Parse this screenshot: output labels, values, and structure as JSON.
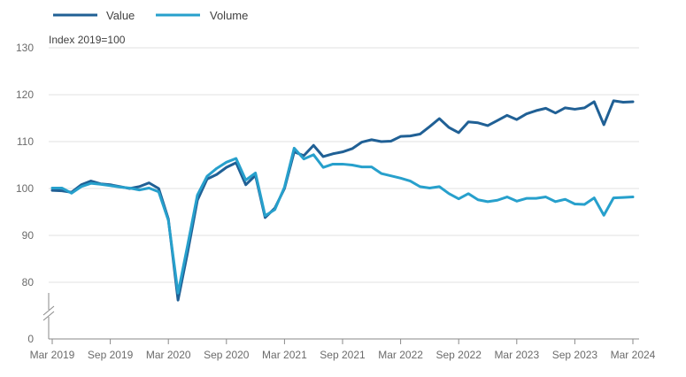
{
  "chart_data": {
    "type": "line",
    "ylabel": "Index 2019=100",
    "ylim": [
      0,
      130
    ],
    "axis_break": true,
    "y_ticks": [
      0,
      80,
      90,
      100,
      110,
      120,
      130
    ],
    "x_tick_labels": [
      "Mar 2019",
      "Sep 2019",
      "Mar 2020",
      "Sep 2020",
      "Mar 2021",
      "Sep 2021",
      "Mar 2022",
      "Sep 2022",
      "Mar 2023",
      "Sep 2023",
      "Mar 2024"
    ],
    "x_tick_every": 6,
    "legend_position": "top-left",
    "grid": "horizontal",
    "series": [
      {
        "name": "Value",
        "color": "#206095",
        "values": [
          99.6,
          99.5,
          99.2,
          100.8,
          101.6,
          101.0,
          100.8,
          100.4,
          100.0,
          100.4,
          101.2,
          100.0,
          93.5,
          76.2,
          86.5,
          97.5,
          102.0,
          103.0,
          104.5,
          105.5,
          100.8,
          102.8,
          93.8,
          95.8,
          100.0,
          107.8,
          107.0,
          109.2,
          106.8,
          107.4,
          107.8,
          108.5,
          109.9,
          110.4,
          110.0,
          110.1,
          111.1,
          111.2,
          111.6,
          113.2,
          114.9,
          113.0,
          111.9,
          114.2,
          114.0,
          113.4,
          114.5,
          115.6,
          114.7,
          115.9,
          116.6,
          117.1,
          116.1,
          117.2,
          116.9,
          117.2,
          118.5,
          113.6,
          118.7,
          118.4,
          118.5
        ]
      },
      {
        "name": "Volume",
        "color": "#27a0cc",
        "values": [
          100.1,
          100.1,
          99.0,
          100.4,
          101.1,
          100.9,
          100.6,
          100.3,
          100.1,
          99.7,
          100.1,
          99.3,
          93.2,
          77.7,
          88.0,
          98.6,
          102.6,
          104.3,
          105.6,
          106.4,
          101.8,
          103.3,
          94.2,
          95.5,
          100.3,
          108.6,
          106.3,
          107.2,
          104.5,
          105.2,
          105.2,
          105.0,
          104.6,
          104.6,
          103.2,
          102.7,
          102.2,
          101.6,
          100.4,
          100.1,
          100.4,
          98.9,
          97.8,
          98.9,
          97.6,
          97.2,
          97.5,
          98.2,
          97.3,
          97.9,
          97.9,
          98.2,
          97.2,
          97.7,
          96.7,
          96.6,
          98.0,
          94.3,
          98.0,
          98.1,
          98.2
        ]
      }
    ]
  }
}
